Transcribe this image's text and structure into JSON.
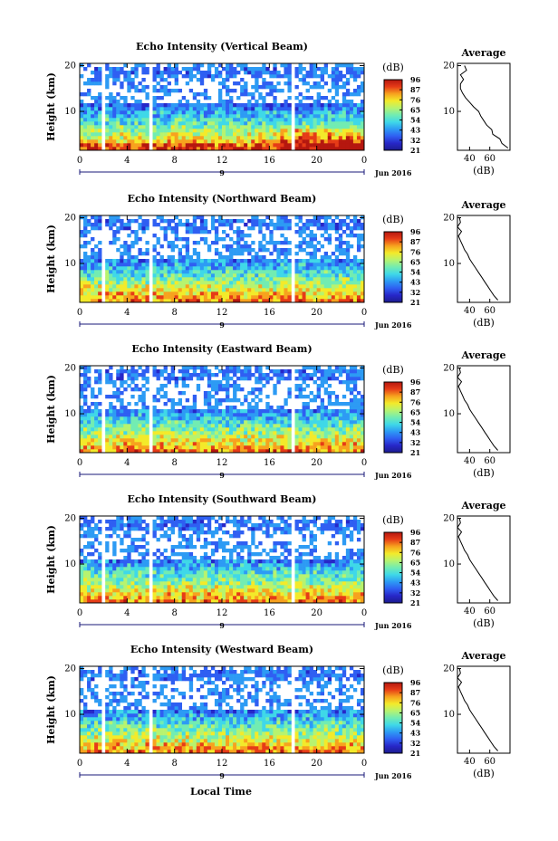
{
  "figure": {
    "time_axis_label": "Local Time",
    "date_label": "Jun 2016",
    "day_label": "9",
    "average_title": "Average",
    "colorbar_unit": "(dB)",
    "avg_x_unit": "(dB)",
    "colors": {
      "colormap": [
        "#1c1c8f",
        "#2727c8",
        "#2f5ff2",
        "#2d9bf4",
        "#3fd8e8",
        "#72ecb2",
        "#b7f36f",
        "#f3ea2a",
        "#f7a21e",
        "#e63b17",
        "#b5170f"
      ],
      "gap": "#ffffff",
      "frame": "#000000",
      "time_line": "#1a1a7a"
    }
  },
  "chart_data": [
    {
      "type": "heatmap",
      "title": "Echo Intensity (Vertical Beam)",
      "ylabel": "Height (km)",
      "xlabel": "Local Time",
      "x_ticks": [
        "0",
        "4",
        "8",
        "12",
        "16",
        "20",
        "0"
      ],
      "y_ticks": [
        "20",
        "10"
      ],
      "x_range_hours": [
        0,
        24
      ],
      "y_range_km": [
        1.5,
        20.5
      ],
      "data_gaps_hours": [
        [
          1.8,
          2.2
        ],
        [
          5.7,
          6.1
        ],
        [
          17.7,
          18.0
        ]
      ],
      "colorbar_ticks": [
        "96",
        "87",
        "76",
        "65",
        "54",
        "43",
        "32",
        "21"
      ],
      "colorbar_range_db": [
        21,
        96
      ],
      "avg_profile": {
        "xlabel": "(dB)",
        "x_ticks": [
          "40",
          "60"
        ],
        "y_ticks": [
          "20",
          "10"
        ],
        "height_km": [
          2,
          3,
          4,
          5,
          6,
          7,
          8,
          9,
          10,
          11,
          12,
          13,
          14,
          15,
          16,
          17,
          18,
          19,
          20
        ],
        "mean_db": [
          78,
          72,
          70,
          63,
          62,
          57,
          54,
          51,
          49,
          44,
          40,
          36,
          33,
          31,
          31,
          34,
          31,
          37,
          35
        ]
      }
    },
    {
      "type": "heatmap",
      "title": "Echo Intensity (Northward Beam)",
      "ylabel": "Height (km)",
      "xlabel": "Local Time",
      "x_ticks": [
        "0",
        "4",
        "8",
        "12",
        "16",
        "20",
        "0"
      ],
      "y_ticks": [
        "20",
        "10"
      ],
      "x_range_hours": [
        0,
        24
      ],
      "y_range_km": [
        1.5,
        20.5
      ],
      "data_gaps_hours": [
        [
          1.8,
          2.2
        ],
        [
          5.7,
          6.1
        ],
        [
          17.7,
          18.0
        ]
      ],
      "colorbar_ticks": [
        "96",
        "87",
        "76",
        "65",
        "54",
        "43",
        "32",
        "21"
      ],
      "colorbar_range_db": [
        21,
        96
      ],
      "avg_profile": {
        "xlabel": "(dB)",
        "x_ticks": [
          "40",
          "60"
        ],
        "y_ticks": [
          "20",
          "10"
        ],
        "height_km": [
          2,
          3,
          4,
          5,
          6,
          7,
          8,
          9,
          10,
          11,
          12,
          13,
          14,
          15,
          16,
          17,
          18,
          19,
          20
        ],
        "mean_db": [
          68,
          64,
          61,
          58,
          55,
          52,
          49,
          46,
          43,
          40,
          38,
          35,
          33,
          31,
          29,
          32,
          28,
          31,
          30
        ]
      }
    },
    {
      "type": "heatmap",
      "title": "Echo Intensity (Eastward Beam)",
      "ylabel": "Height (km)",
      "xlabel": "Local Time",
      "x_ticks": [
        "0",
        "4",
        "8",
        "12",
        "16",
        "20",
        "0"
      ],
      "y_ticks": [
        "20",
        "10"
      ],
      "x_range_hours": [
        0,
        24
      ],
      "y_range_km": [
        1.5,
        20.5
      ],
      "data_gaps_hours": [
        [
          1.8,
          2.2
        ],
        [
          5.7,
          6.1
        ],
        [
          17.7,
          18.0
        ]
      ],
      "colorbar_ticks": [
        "96",
        "87",
        "76",
        "65",
        "54",
        "43",
        "32",
        "21"
      ],
      "colorbar_range_db": [
        21,
        96
      ],
      "avg_profile": {
        "xlabel": "(dB)",
        "x_ticks": [
          "40",
          "60"
        ],
        "y_ticks": [
          "20",
          "10"
        ],
        "height_km": [
          2,
          3,
          4,
          5,
          6,
          7,
          8,
          9,
          10,
          11,
          12,
          13,
          14,
          15,
          16,
          17,
          18,
          19,
          20
        ],
        "mean_db": [
          68,
          64,
          61,
          58,
          55,
          52,
          49,
          46,
          43,
          40,
          38,
          35,
          33,
          31,
          29,
          32,
          28,
          31,
          30
        ]
      }
    },
    {
      "type": "heatmap",
      "title": "Echo Intensity (Southward Beam)",
      "ylabel": "Height (km)",
      "xlabel": "Local Time",
      "x_ticks": [
        "0",
        "4",
        "8",
        "12",
        "16",
        "20",
        "0"
      ],
      "y_ticks": [
        "20",
        "10"
      ],
      "x_range_hours": [
        0,
        24
      ],
      "y_range_km": [
        1.5,
        20.5
      ],
      "data_gaps_hours": [
        [
          1.8,
          2.2
        ],
        [
          5.7,
          6.1
        ],
        [
          17.7,
          18.0
        ]
      ],
      "colorbar_ticks": [
        "96",
        "87",
        "76",
        "65",
        "54",
        "43",
        "32",
        "21"
      ],
      "colorbar_range_db": [
        21,
        96
      ],
      "avg_profile": {
        "xlabel": "(dB)",
        "x_ticks": [
          "40",
          "60"
        ],
        "y_ticks": [
          "20",
          "10"
        ],
        "height_km": [
          2,
          3,
          4,
          5,
          6,
          7,
          8,
          9,
          10,
          11,
          12,
          13,
          14,
          15,
          16,
          17,
          18,
          19,
          20
        ],
        "mean_db": [
          68,
          64,
          61,
          58,
          55,
          52,
          49,
          46,
          43,
          40,
          38,
          35,
          33,
          31,
          29,
          32,
          28,
          31,
          30
        ]
      }
    },
    {
      "type": "heatmap",
      "title": "Echo Intensity (Westward Beam)",
      "ylabel": "Height (km)",
      "xlabel": "Local Time",
      "x_ticks": [
        "0",
        "4",
        "8",
        "12",
        "16",
        "20",
        "0"
      ],
      "y_ticks": [
        "20",
        "10"
      ],
      "x_range_hours": [
        0,
        24
      ],
      "y_range_km": [
        1.5,
        20.5
      ],
      "data_gaps_hours": [
        [
          1.8,
          2.2
        ],
        [
          5.7,
          6.1
        ],
        [
          17.7,
          18.0
        ]
      ],
      "colorbar_ticks": [
        "96",
        "87",
        "76",
        "65",
        "54",
        "43",
        "32",
        "21"
      ],
      "colorbar_range_db": [
        21,
        96
      ],
      "avg_profile": {
        "xlabel": "(dB)",
        "x_ticks": [
          "40",
          "60"
        ],
        "y_ticks": [
          "20",
          "10"
        ],
        "height_km": [
          2,
          3,
          4,
          5,
          6,
          7,
          8,
          9,
          10,
          11,
          12,
          13,
          14,
          15,
          16,
          17,
          18,
          19,
          20
        ],
        "mean_db": [
          68,
          64,
          61,
          58,
          55,
          52,
          49,
          46,
          43,
          40,
          38,
          35,
          33,
          31,
          29,
          32,
          28,
          31,
          30
        ]
      }
    }
  ]
}
